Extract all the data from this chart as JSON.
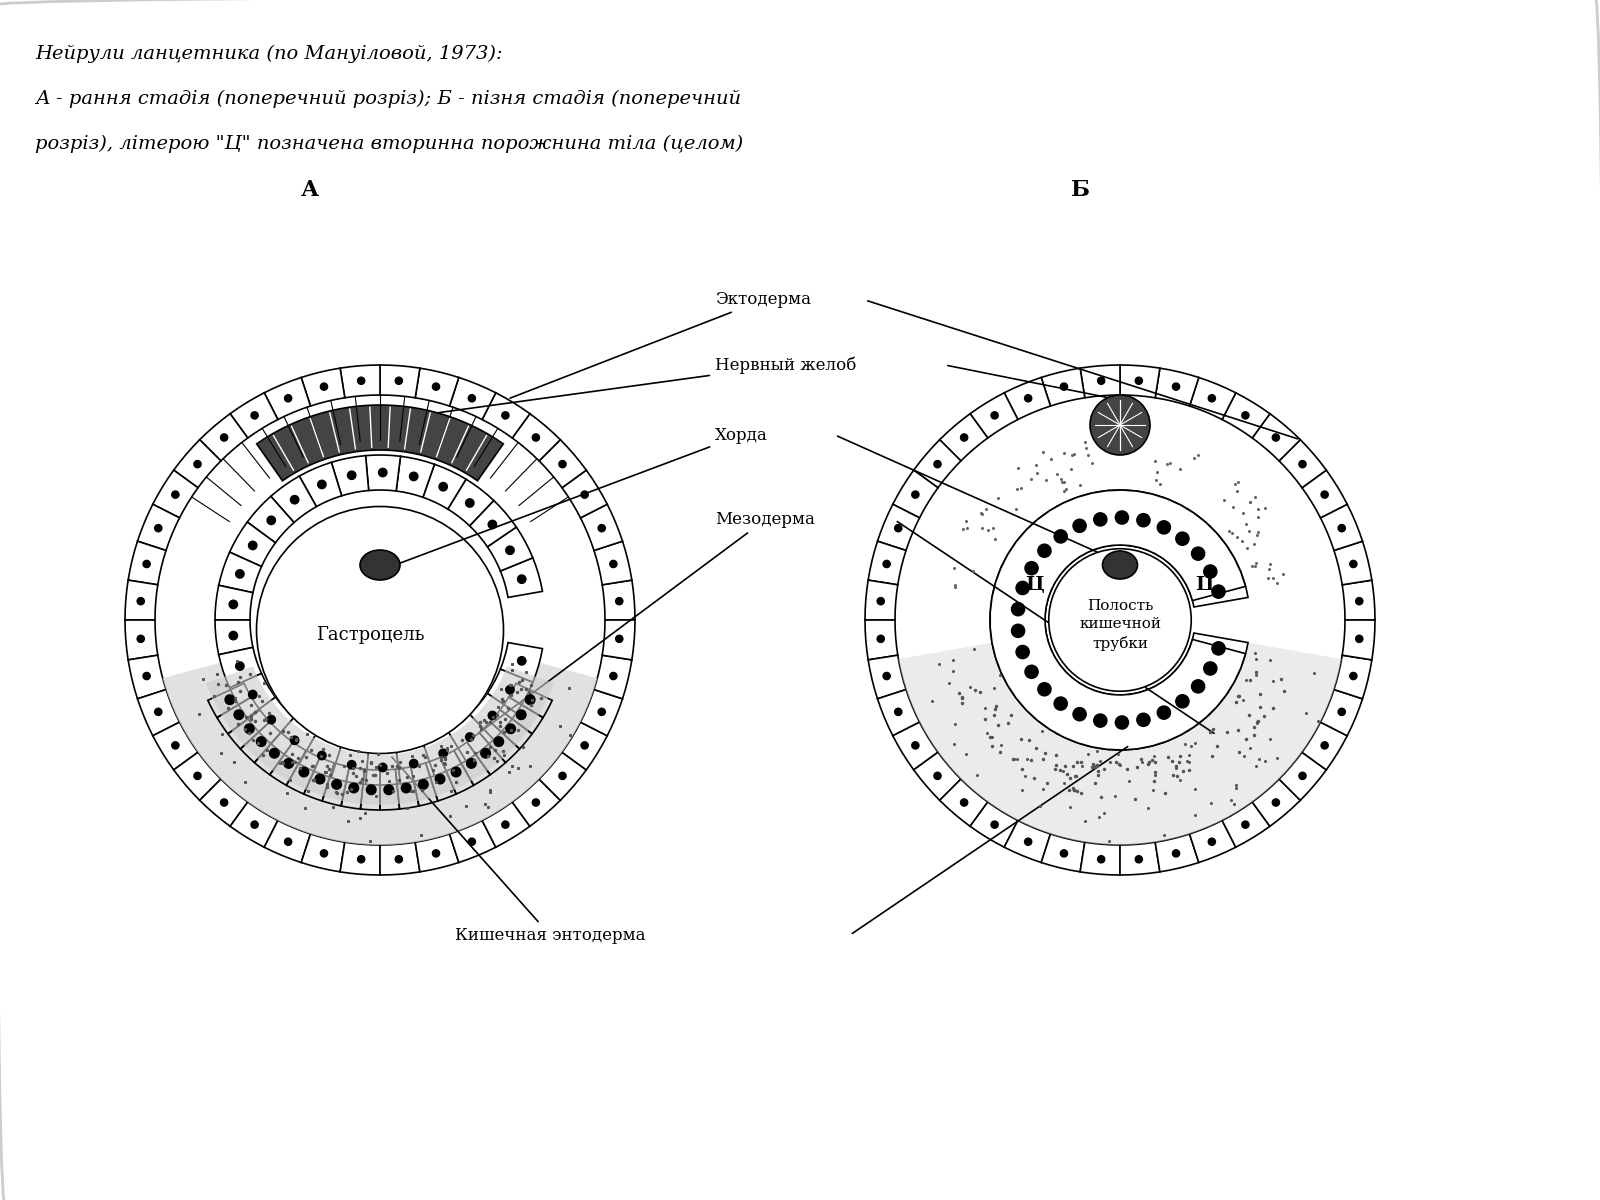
{
  "title_line1": "Нейрули ланцетника (по Мануіловой, 1973):",
  "title_line2": "А - рання стадія (поперечний розріз); Б - пізня стадія (поперечний",
  "title_line3": "розріз), літерою \"Ц\" позначена вторинна порожнина тіла (целом)",
  "label_A": "А",
  "label_B": "Б",
  "label_ectoderm": "Эктодерма",
  "label_nerve_groove": "Нервный желоб",
  "label_chord": "Хорда",
  "label_mesoderm": "Мезодерма",
  "label_gastrocoel": "Гастроцель",
  "label_intestinal_endoderm": "Кишечная энтодерма",
  "label_intestinal_cavity": "Полость\nкишечной\nтрубки",
  "label_Ts": "Ц",
  "bg_color": "#ffffff",
  "line_color": "#000000",
  "ecto_fill": "#ffffff",
  "meso_fill": "#d0d0d0",
  "neural_fill": "#a0a0a0",
  "gastrocoel_fill": "#ffffff",
  "stipple_fill": "#e8e8e8"
}
